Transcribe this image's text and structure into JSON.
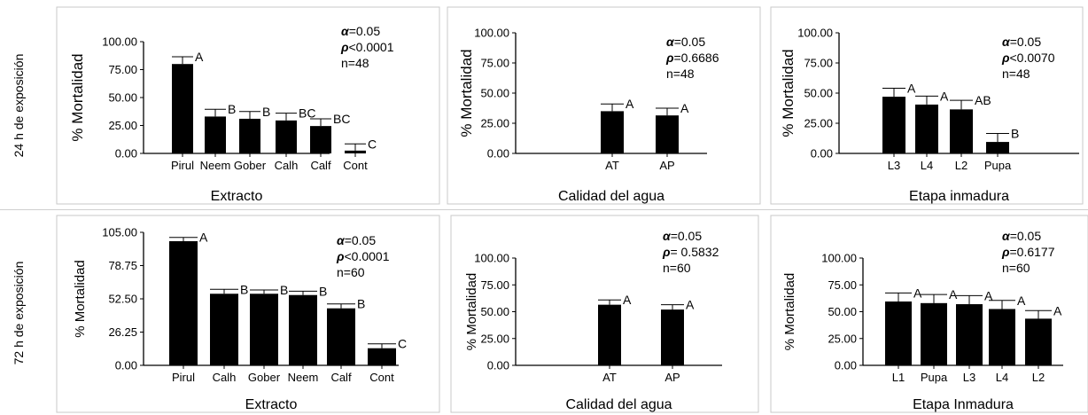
{
  "rows": [
    {
      "label": "24 h de exposición"
    },
    {
      "label": "72 h de exposición"
    }
  ],
  "chart_data": [
    {
      "type": "bar",
      "categories": [
        "Pirul",
        "Neem",
        "Gober",
        "Calh",
        "Calf",
        "Cont"
      ],
      "values": [
        80,
        33,
        31,
        29.5,
        24.5,
        2.5
      ],
      "errors": [
        6.5,
        6.5,
        6.5,
        6.5,
        6.5,
        6
      ],
      "letters": [
        "A",
        "B",
        "B",
        "BC",
        "BC",
        "C"
      ],
      "xlabel": "Extracto",
      "ylabel": "% Mortalidad",
      "ylim": [
        0,
        100
      ],
      "yticks": [
        "0.00",
        "25.00",
        "50.00",
        "75.00",
        "100.00"
      ],
      "stats": {
        "alpha_value": "=0.05",
        "rho_value": "<0.0001",
        "n": "n=48"
      }
    },
    {
      "type": "bar",
      "categories": [
        "AT",
        "AP"
      ],
      "values": [
        35,
        31.5
      ],
      "errors": [
        6,
        6
      ],
      "letters": [
        "A",
        "A"
      ],
      "xlabel": "Calidad del agua",
      "ylabel": "% Mortalidad",
      "ylim": [
        0,
        100
      ],
      "yticks": [
        "0.00",
        "25.00",
        "50.00",
        "75.00",
        "100.00"
      ],
      "stats": {
        "alpha_value": "=0.05",
        "rho_value": "=0.6686",
        "n": "n=48"
      }
    },
    {
      "type": "bar",
      "categories": [
        "L3",
        "L4",
        "L2",
        "Pupa"
      ],
      "values": [
        47,
        40.5,
        36.5,
        9.5
      ],
      "errors": [
        7,
        7,
        7.5,
        7
      ],
      "letters": [
        "A",
        "A",
        "AB",
        "B"
      ],
      "xlabel": "Etapa inmadura",
      "ylabel": "% Mortalidad",
      "ylim": [
        0,
        100
      ],
      "yticks": [
        "0.00",
        "25.00",
        "50.00",
        "75.00",
        "100.00"
      ],
      "stats": {
        "alpha_value": "=0.05",
        "rho_value": "<0.0070",
        "n": "n=48"
      }
    },
    {
      "type": "bar",
      "categories": [
        "Pirul",
        "Calh",
        "Gober",
        "Neem",
        "Calf",
        "Cont"
      ],
      "values": [
        98,
        56.5,
        56.5,
        55.5,
        45,
        13.5
      ],
      "errors": [
        3,
        3.5,
        3,
        3,
        3.5,
        3.5
      ],
      "letters": [
        "A",
        "B",
        "B",
        "B",
        "B",
        "C"
      ],
      "xlabel": "Extracto",
      "ylabel": "% Mortalidad",
      "ylim": [
        0,
        105
      ],
      "yticks": [
        "0.00",
        "26.25",
        "52.50",
        "78.75",
        "105.00"
      ],
      "stats": {
        "alpha_value": "=0.05",
        "rho_value": "<0.0001",
        "n": "n=60"
      }
    },
    {
      "type": "bar",
      "categories": [
        "AT",
        "AP"
      ],
      "values": [
        56.5,
        52
      ],
      "errors": [
        4.5,
        4.5
      ],
      "letters": [
        "A",
        "A"
      ],
      "xlabel": "Calidad del agua",
      "ylabel": "% Mortalidad",
      "ylim": [
        0,
        100
      ],
      "yticks": [
        "0.00",
        "25.00",
        "50.00",
        "75.00",
        "100.00"
      ],
      "stats": {
        "alpha_value": "=0.05",
        "rho_value": "= 0.5832",
        "n": "n=60"
      }
    },
    {
      "type": "bar",
      "categories": [
        "L1",
        "Pupa",
        "L3",
        "L4",
        "L2"
      ],
      "values": [
        59.5,
        58,
        57,
        52.5,
        43.5
      ],
      "errors": [
        8,
        8,
        8,
        8,
        7.5
      ],
      "letters": [
        "A",
        "A",
        "A",
        "A",
        "A"
      ],
      "xlabel": "Etapa Inmadura",
      "ylabel": "% Mortalidad",
      "ylim": [
        0,
        100
      ],
      "yticks": [
        "0.00",
        "25.00",
        "50.00",
        "75.00",
        "100.00"
      ],
      "stats": {
        "alpha_value": "=0.05",
        "rho_value": "=0.6177",
        "n": "n=60"
      }
    }
  ]
}
